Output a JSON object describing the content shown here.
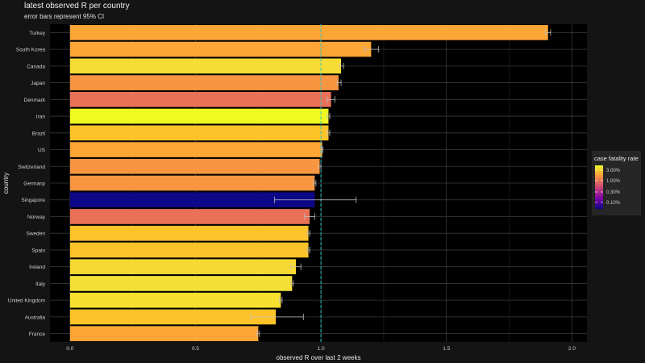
{
  "chart_data": {
    "type": "bar",
    "orientation": "horizontal",
    "title": "latest observed R per country",
    "subtitle": "error bars represent 95% CI",
    "xlabel": "observed R over last 2 weeks",
    "ylabel": "country",
    "xlim": [
      -0.08,
      2.06
    ],
    "xticks": [
      0.0,
      0.5,
      1.0,
      1.5,
      2.0
    ],
    "xtick_labels": [
      "0.0",
      "0.5",
      "1.0",
      "1.5",
      "2.0"
    ],
    "reference_line": 1.0,
    "reference_line_color": "#29c6c6",
    "grid": true,
    "legend": {
      "title": "case fatality rate",
      "position": "right",
      "scale": "log",
      "labels": [
        "3.00%",
        "1.00%",
        "0.30%",
        "0.10%"
      ],
      "values": [
        3.0,
        1.0,
        0.3,
        0.1
      ],
      "range": [
        0.05,
        5.0
      ]
    },
    "categories": [
      "Turkey",
      "South Korea",
      "Canada",
      "Japan",
      "Denmark",
      "Iran",
      "Brazil",
      "US",
      "Switzerland",
      "Germany",
      "Singapore",
      "Norway",
      "Sweden",
      "Spain",
      "Ireland",
      "Italy",
      "United Kingdom",
      "Australia",
      "France"
    ],
    "values": [
      1.905,
      1.2,
      1.08,
      1.07,
      1.04,
      1.03,
      1.03,
      1.005,
      0.995,
      0.975,
      0.975,
      0.955,
      0.95,
      0.95,
      0.9,
      0.885,
      0.84,
      0.82,
      0.75
    ],
    "ci_low": [
      1.895,
      1.175,
      1.075,
      1.065,
      1.025,
      1.025,
      1.025,
      1.002,
      0.99,
      0.97,
      0.815,
      0.935,
      0.945,
      0.945,
      0.88,
      0.88,
      0.835,
      0.72,
      0.745
    ],
    "ci_high": [
      1.915,
      1.23,
      1.09,
      1.08,
      1.055,
      1.035,
      1.035,
      1.008,
      1.0,
      0.98,
      1.14,
      0.975,
      0.955,
      0.955,
      0.92,
      0.89,
      0.845,
      0.93,
      0.755
    ],
    "colors": [
      "#fca636",
      "#fca636",
      "#f6dc34",
      "#f89540",
      "#e97158",
      "#f0f921",
      "#fdc328",
      "#fca636",
      "#f89540",
      "#f89540",
      "#0d0887",
      "#e97158",
      "#fdc328",
      "#fdc328",
      "#f8d832",
      "#f5e036",
      "#f8e030",
      "#fdc328",
      "#fca636"
    ]
  }
}
